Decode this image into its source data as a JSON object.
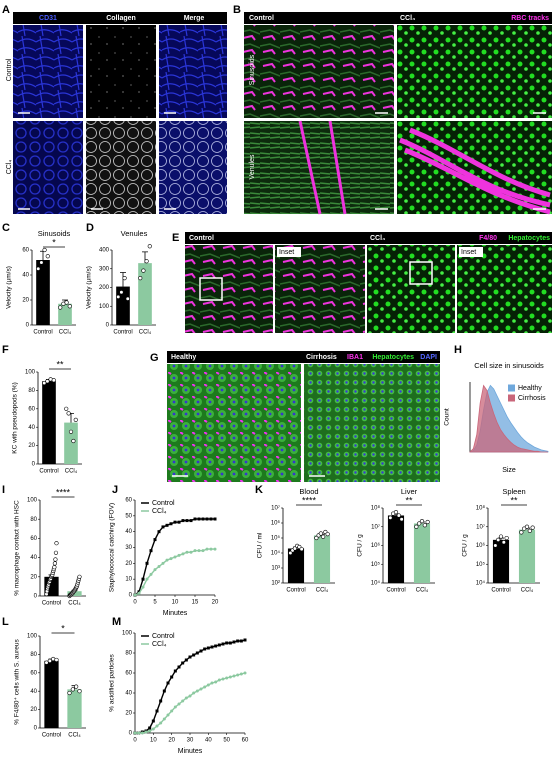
{
  "panels": [
    {
      "label": "A",
      "columns": [
        "CD31",
        "Collagen",
        "Merge"
      ],
      "rows": [
        "Control",
        "CCl₄"
      ]
    },
    {
      "label": "B",
      "columns": [
        "Control",
        "CCl₄"
      ],
      "legend": "RBC tracks",
      "rows": [
        "Sinusoids",
        "Venules"
      ]
    },
    {
      "label": "E",
      "columns": [
        "Control",
        "CCl₄"
      ],
      "insets": [
        "Inset",
        "Inset"
      ],
      "stains": [
        "F4/80",
        "Hepatocytes"
      ]
    },
    {
      "label": "G",
      "columns": [
        "Healthy",
        "Cirrhosis"
      ],
      "stains": [
        "IBA1",
        "Hepatocytes",
        "DAPI"
      ]
    }
  ],
  "chart_data": [
    {
      "type": "bar",
      "panel": "C",
      "title": "Sinusoids",
      "ylabel": "Velocity (µm/s)",
      "categories": [
        "Control",
        "CCl₄"
      ],
      "colors": [
        "#000000",
        "#8cc9a0"
      ],
      "values": [
        52,
        17
      ],
      "errors": [
        7,
        3
      ],
      "points": [
        [
          45,
          50,
          60,
          55
        ],
        [
          14,
          17,
          18,
          15
        ]
      ],
      "ylim": [
        0,
        60
      ],
      "yticks": [
        0,
        20,
        40,
        60
      ],
      "significance": "*"
    },
    {
      "type": "bar",
      "panel": "D",
      "title": "Venules",
      "ylabel": "Velocity (µm/s)",
      "categories": [
        "Control",
        "CCl₄"
      ],
      "colors": [
        "#000000",
        "#8cc9a0"
      ],
      "values": [
        205,
        330
      ],
      "errors": [
        75,
        60
      ],
      "points": [
        [
          150,
          175,
          250,
          140
        ],
        [
          250,
          290,
          340,
          420
        ]
      ],
      "ylim": [
        0,
        400
      ],
      "yticks": [
        0,
        100,
        200,
        300,
        400
      ]
    },
    {
      "type": "bar",
      "panel": "F",
      "ylabel": "KC with pseudopods (%)",
      "categories": [
        "Control",
        "CCl₄"
      ],
      "colors": [
        "#000000",
        "#8cc9a0"
      ],
      "values": [
        90,
        45
      ],
      "errors": [
        2,
        10
      ],
      "points": [
        [
          88,
          90,
          92,
          91
        ],
        [
          60,
          55,
          35,
          25,
          48
        ]
      ],
      "ylim": [
        0,
        100
      ],
      "yticks": [
        0,
        20,
        40,
        60,
        80,
        100
      ],
      "significance": "**"
    },
    {
      "type": "area",
      "panel": "H",
      "title": "Cell size in sinusoids",
      "xlabel": "Size",
      "ylabel": "Count",
      "ylim": [
        0,
        100
      ],
      "series": [
        {
          "name": "Healthy",
          "color": "#6fa8dc",
          "values": [
            0,
            2,
            10,
            30,
            60,
            85,
            95,
            90,
            80,
            70,
            60,
            50,
            42,
            35,
            28,
            22,
            17,
            13,
            10,
            7,
            5,
            3,
            2,
            1
          ]
        },
        {
          "name": "Cirrhosis",
          "color": "#c9667a",
          "values": [
            0,
            5,
            25,
            70,
            95,
            88,
            70,
            55,
            42,
            32,
            25,
            19,
            14,
            10,
            7,
            5,
            4,
            3,
            2,
            1,
            1,
            0,
            0,
            0
          ]
        }
      ]
    },
    {
      "type": "bar",
      "panel": "I",
      "ylabel": "% macrophage contact with HSC",
      "categories": [
        "Control",
        "CCl₄"
      ],
      "colors": [
        "#000000",
        "#8cc9a0"
      ],
      "values": [
        20,
        5
      ],
      "errors": [
        2,
        1
      ],
      "points": [
        [
          2,
          5,
          8,
          10,
          12,
          14,
          15,
          17,
          18,
          20,
          21,
          22,
          24,
          26,
          28,
          30,
          34,
          38,
          45,
          55
        ],
        [
          0,
          1,
          1,
          2,
          2,
          3,
          3,
          4,
          5,
          5,
          6,
          7,
          8,
          9,
          10,
          12,
          14,
          16,
          18,
          20
        ]
      ],
      "ylim": [
        0,
        100
      ],
      "yticks": [
        0,
        20,
        40,
        60,
        80,
        100
      ],
      "significance": "****"
    },
    {
      "type": "line",
      "panel": "J",
      "xlabel": "Minutes",
      "ylabel": "Staphylococcal catching (FOV)",
      "x": [
        0,
        1,
        2,
        3,
        4,
        5,
        6,
        7,
        8,
        9,
        10,
        11,
        12,
        13,
        14,
        15,
        16,
        17,
        18,
        19,
        20
      ],
      "xlim": [
        0,
        20
      ],
      "xticks": [
        0,
        5,
        10,
        15,
        20
      ],
      "ylim": [
        0,
        60
      ],
      "yticks": [
        0,
        10,
        20,
        30,
        40,
        50,
        60
      ],
      "series": [
        {
          "name": "Control",
          "color": "#000000",
          "marker": "square",
          "values": [
            0,
            2,
            10,
            20,
            28,
            35,
            40,
            43,
            44,
            45,
            46,
            46,
            47,
            47,
            47,
            48,
            48,
            48,
            48,
            48,
            48
          ]
        },
        {
          "name": "CCl₄",
          "color": "#8cc9a0",
          "marker": "circle",
          "values": [
            0,
            1,
            5,
            10,
            13,
            16,
            18,
            20,
            22,
            23,
            24,
            25,
            26,
            27,
            27,
            28,
            28,
            28,
            29,
            29,
            29
          ]
        }
      ]
    },
    {
      "type": "bar",
      "panel": "K",
      "title": "Blood",
      "ylabel": "CFU / ml",
      "log": true,
      "categories": [
        "Control",
        "CCl₄"
      ],
      "colors": [
        "#000000",
        "#8cc9a0"
      ],
      "values": [
        20000,
        150000
      ],
      "errors": [
        5000,
        30000
      ],
      "points": [
        [
          10000,
          15000,
          20000,
          30000,
          25000,
          18000
        ],
        [
          100000,
          150000,
          200000,
          120000,
          250000,
          180000
        ]
      ],
      "ylim": [
        100,
        10000000
      ],
      "yticks": [
        {
          "value": 100,
          "label": "10²"
        },
        {
          "value": 1000,
          "label": "10³"
        },
        {
          "value": 10000,
          "label": "10⁴"
        },
        {
          "value": 100000,
          "label": "10⁵"
        },
        {
          "value": 1000000,
          "label": "10⁶"
        },
        {
          "value": 10000000,
          "label": "10⁷"
        }
      ],
      "significance": "****"
    },
    {
      "type": "bar",
      "title": "Liver",
      "ylabel": "CFU / g",
      "log": true,
      "categories": [
        "Control",
        "CCl₄"
      ],
      "colors": [
        "#000000",
        "#8cc9a0"
      ],
      "values": [
        40000000,
        15000000
      ],
      "errors": [
        8000000,
        3000000
      ],
      "points": [
        [
          30000000,
          50000000,
          60000000,
          40000000,
          25000000
        ],
        [
          10000000,
          15000000,
          20000000,
          12000000,
          18000000
        ]
      ],
      "ylim": [
        10000,
        100000000
      ],
      "yticks": [
        {
          "value": 10000,
          "label": "10⁴"
        },
        {
          "value": 100000,
          "label": "10⁵"
        },
        {
          "value": 1000000,
          "label": "10⁶"
        },
        {
          "value": 10000000,
          "label": "10⁷"
        },
        {
          "value": 100000000,
          "label": "10⁸"
        }
      ],
      "significance": "**"
    },
    {
      "type": "bar",
      "title": "Spleen",
      "ylabel": "CFU / g",
      "log": true,
      "categories": [
        "Control",
        "CCl₄"
      ],
      "colors": [
        "#000000",
        "#8cc9a0"
      ],
      "values": [
        2000000,
        7000000
      ],
      "errors": [
        500000,
        1500000
      ],
      "points": [
        [
          1000000,
          2000000,
          3000000,
          1500000,
          2500000
        ],
        [
          5000000,
          8000000,
          10000000,
          6000000,
          9000000
        ]
      ],
      "ylim": [
        10000,
        100000000
      ],
      "yticks": [
        {
          "value": 10000,
          "label": "10⁴"
        },
        {
          "value": 100000,
          "label": "10⁵"
        },
        {
          "value": 1000000,
          "label": "10⁶"
        },
        {
          "value": 10000000,
          "label": "10⁷"
        },
        {
          "value": 100000000,
          "label": "10⁸"
        }
      ],
      "significance": "**"
    },
    {
      "type": "bar",
      "panel": "L",
      "ylabel": "% F4/80⁺ cells with S. aureus",
      "categories": [
        "Control",
        "CCl₄"
      ],
      "colors": [
        "#000000",
        "#8cc9a0"
      ],
      "values": [
        73,
        42
      ],
      "errors": [
        2,
        4
      ],
      "points": [
        [
          71,
          73,
          75,
          74
        ],
        [
          38,
          42,
          45,
          40
        ]
      ],
      "ylim": [
        0,
        100
      ],
      "yticks": [
        0,
        20,
        40,
        60,
        80,
        100
      ],
      "significance": "*"
    },
    {
      "type": "line",
      "panel": "M",
      "xlabel": "Minutes",
      "ylabel": "% acidified particles",
      "x": [
        0,
        2,
        4,
        6,
        8,
        10,
        12,
        14,
        16,
        18,
        20,
        22,
        24,
        26,
        28,
        30,
        32,
        34,
        36,
        38,
        40,
        42,
        44,
        46,
        48,
        50,
        52,
        54,
        56,
        58,
        60
      ],
      "xlim": [
        0,
        60
      ],
      "xticks": [
        0,
        10,
        20,
        30,
        40,
        50,
        60
      ],
      "ylim": [
        0,
        100
      ],
      "yticks": [
        0,
        20,
        40,
        60,
        80,
        100
      ],
      "series": [
        {
          "name": "Control",
          "color": "#000000",
          "marker": "square",
          "values": [
            0,
            0,
            1,
            2,
            5,
            12,
            22,
            32,
            42,
            50,
            56,
            62,
            66,
            70,
            73,
            76,
            78,
            80,
            82,
            84,
            85,
            86,
            87,
            88,
            89,
            90,
            90,
            91,
            92,
            92,
            93
          ]
        },
        {
          "name": "CCl₄",
          "color": "#8cc9a0",
          "marker": "circle",
          "values": [
            0,
            0,
            0,
            1,
            2,
            4,
            7,
            10,
            14,
            18,
            22,
            26,
            29,
            32,
            35,
            37,
            40,
            42,
            44,
            46,
            48,
            50,
            51,
            53,
            54,
            55,
            56,
            57,
            58,
            59,
            60
          ]
        }
      ]
    }
  ]
}
